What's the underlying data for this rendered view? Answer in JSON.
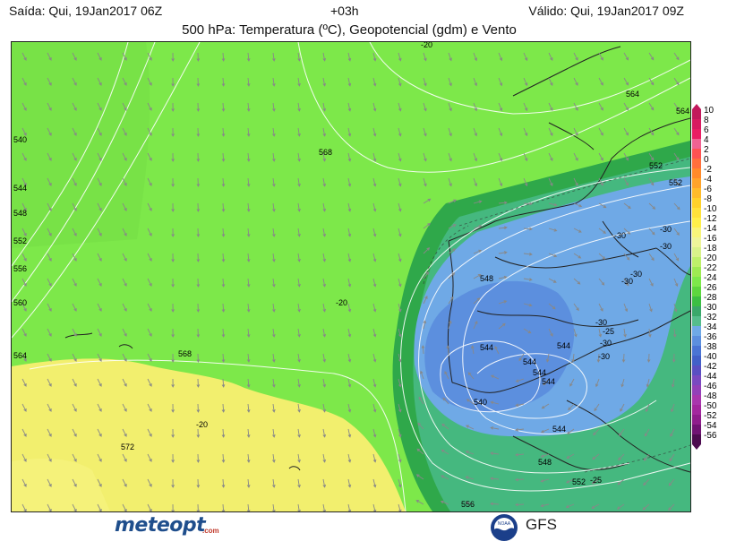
{
  "header": {
    "issued": "Saída: Qui, 19Jan2017 06Z",
    "lead": "+03h",
    "valid": "Válido: Qui, 19Jan2017 09Z",
    "title": "500 hPa: Temperatura (ºC), Geopotencial (gdm) e Vento"
  },
  "map": {
    "geopotential_labels": [
      "564",
      "568",
      "552",
      "552",
      "548",
      "544",
      "544",
      "544",
      "544",
      "544",
      "540",
      "544",
      "548",
      "552",
      "556",
      "572",
      "568",
      "564",
      "560",
      "556",
      "552",
      "548",
      "544",
      "540",
      "564"
    ],
    "temperature_labels": [
      "-20",
      "-20",
      "-30",
      "-30",
      "-30",
      "-30",
      "-30",
      "-30",
      "-30",
      "-30",
      "-25",
      "-20",
      "-25"
    ],
    "colors": {
      "green_light": "#7de84a",
      "green_dark": "#2fa84a",
      "teal": "#45b87f",
      "blue_light": "#6fa9e6",
      "blue_mid": "#5c8fde",
      "yellow": "#f5f27a",
      "yellow_pale": "#f8f59b"
    }
  },
  "colorbar": {
    "labels": [
      "10",
      "8",
      "6",
      "4",
      "2",
      "0",
      "-2",
      "-4",
      "-6",
      "-8",
      "-10",
      "-12",
      "-14",
      "-16",
      "-18",
      "-20",
      "-22",
      "-24",
      "-26",
      "-28",
      "-30",
      "-32",
      "-34",
      "-36",
      "-38",
      "-40",
      "-42",
      "-44",
      "-46",
      "-48",
      "-50",
      "-52",
      "-54",
      "-56"
    ],
    "colors": [
      "#c2185b",
      "#d81b60",
      "#e91e63",
      "#f06292",
      "#ff5252",
      "#ff6f3c",
      "#ff8a2a",
      "#ffa32a",
      "#ffbb2a",
      "#ffd12a",
      "#ffe23a",
      "#fff04a",
      "#f8f57a",
      "#eef59a",
      "#d9f28a",
      "#bef06a",
      "#9eea52",
      "#7de84a",
      "#5dd63e",
      "#3cbf43",
      "#3aa86a",
      "#55bd8c",
      "#6fa9e6",
      "#5c8fde",
      "#4a74d4",
      "#4260c8",
      "#5a4fc2",
      "#7a49c0",
      "#9340b8",
      "#a936ad",
      "#a3279e",
      "#8f1d8c",
      "#701373",
      "#4c0b4f"
    ]
  },
  "footer": {
    "brand": "meteopt",
    "brand_suffix": ".com",
    "noaa": "NOAA",
    "model": "GFS"
  }
}
